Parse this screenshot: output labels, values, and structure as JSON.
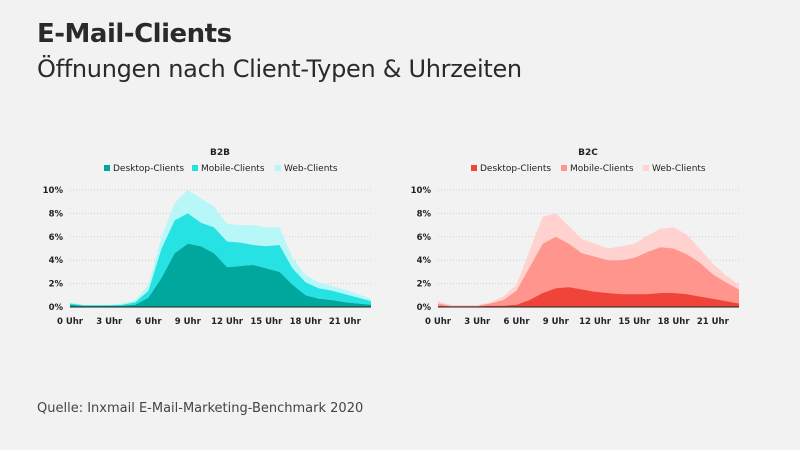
{
  "header": {
    "title": "E-Mail-Clients",
    "subtitle": "Öffnungen nach Client-Typen & Uhrzeiten"
  },
  "footer": {
    "source": "Quelle: Inxmail E-Mail-Marketing-Benchmark 2020"
  },
  "chart_data": [
    {
      "type": "area",
      "stacked": true,
      "title": "B2B",
      "x": [
        0,
        1,
        2,
        3,
        4,
        5,
        6,
        7,
        8,
        9,
        10,
        11,
        12,
        13,
        14,
        15,
        16,
        17,
        18,
        19,
        20,
        21,
        22,
        23
      ],
      "x_tick_values": [
        0,
        3,
        6,
        9,
        12,
        15,
        18,
        21
      ],
      "x_tick_labels": [
        "0 Uhr",
        "3 Uhr",
        "6 Uhr",
        "9 Uhr",
        "12 Uhr",
        "15 Uhr",
        "18 Uhr",
        "21 Uhr"
      ],
      "y_tick_values": [
        0,
        2,
        4,
        6,
        8,
        10
      ],
      "y_tick_labels": [
        "0%",
        "2%",
        "4%",
        "6%",
        "8%",
        "10%"
      ],
      "ylim": [
        0,
        10
      ],
      "legend_position": "top",
      "series": [
        {
          "name": "Desktop-Clients",
          "color": "#00a79d",
          "values": [
            0.2,
            0.1,
            0.1,
            0.1,
            0.1,
            0.2,
            0.8,
            2.5,
            4.6,
            5.4,
            5.2,
            4.6,
            3.4,
            3.5,
            3.6,
            3.3,
            3.0,
            1.9,
            1.0,
            0.7,
            0.6,
            0.4,
            0.3,
            0.2
          ]
        },
        {
          "name": "Mobile-Clients",
          "color": "#27e2e2",
          "values": [
            0.1,
            0.05,
            0.05,
            0.05,
            0.1,
            0.2,
            0.6,
            2.5,
            2.8,
            2.6,
            2.0,
            2.2,
            2.2,
            2.0,
            1.7,
            1.9,
            2.3,
            1.4,
            1.1,
            0.9,
            0.8,
            0.7,
            0.5,
            0.3
          ]
        },
        {
          "name": "Web-Clients",
          "color": "#b7f7f7",
          "values": [
            0.1,
            0.05,
            0.05,
            0.05,
            0.1,
            0.2,
            0.5,
            1.0,
            1.5,
            2.0,
            2.1,
            1.8,
            1.5,
            1.5,
            1.7,
            1.6,
            1.5,
            0.9,
            0.6,
            0.5,
            0.4,
            0.4,
            0.3,
            0.2
          ]
        }
      ]
    },
    {
      "type": "area",
      "stacked": true,
      "title": "B2C",
      "x": [
        0,
        1,
        2,
        3,
        4,
        5,
        6,
        7,
        8,
        9,
        10,
        11,
        12,
        13,
        14,
        15,
        16,
        17,
        18,
        19,
        20,
        21,
        22,
        23
      ],
      "x_tick_values": [
        0,
        3,
        6,
        9,
        12,
        15,
        18,
        21
      ],
      "x_tick_labels": [
        "0 Uhr",
        "3 Uhr",
        "6 Uhr",
        "9 Uhr",
        "12 Uhr",
        "15 Uhr",
        "18 Uhr",
        "21 Uhr"
      ],
      "y_tick_values": [
        0,
        2,
        4,
        6,
        8,
        10
      ],
      "y_tick_labels": [
        "0%",
        "2%",
        "4%",
        "6%",
        "8%",
        "10%"
      ],
      "ylim": [
        0,
        10
      ],
      "legend_position": "top",
      "series": [
        {
          "name": "Desktop-Clients",
          "color": "#f0443a",
          "values": [
            0.1,
            0.05,
            0.05,
            0.05,
            0.1,
            0.1,
            0.2,
            0.6,
            1.2,
            1.6,
            1.7,
            1.5,
            1.3,
            1.2,
            1.1,
            1.1,
            1.1,
            1.2,
            1.2,
            1.1,
            0.9,
            0.7,
            0.5,
            0.3
          ]
        },
        {
          "name": "Mobile-Clients",
          "color": "#ff958c",
          "values": [
            0.2,
            0.05,
            0.05,
            0.05,
            0.2,
            0.5,
            1.2,
            2.8,
            4.2,
            4.4,
            3.7,
            3.1,
            3.0,
            2.8,
            2.9,
            3.1,
            3.6,
            3.9,
            3.8,
            3.4,
            2.9,
            2.1,
            1.6,
            1.2
          ]
        },
        {
          "name": "Web-Clients",
          "color": "#ffd2cf",
          "values": [
            0.2,
            0.05,
            0.05,
            0.05,
            0.1,
            0.3,
            0.5,
            1.4,
            2.3,
            2.0,
            1.5,
            1.2,
            1.1,
            1.0,
            1.2,
            1.2,
            1.4,
            1.6,
            1.8,
            1.7,
            1.2,
            0.9,
            0.6,
            0.4
          ]
        }
      ]
    }
  ]
}
